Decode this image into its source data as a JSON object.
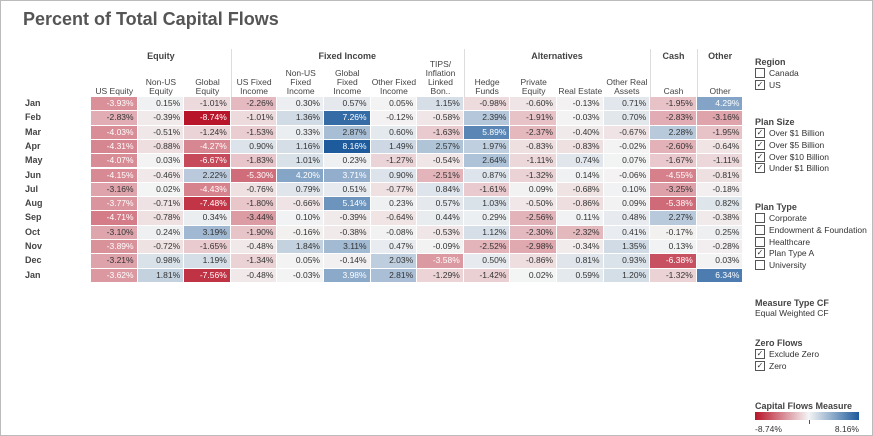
{
  "chart_data": {
    "type": "heatmap",
    "title": "Percent of Total Capital Flows",
    "groups": [
      {
        "name": "Equity",
        "span": 3
      },
      {
        "name": "Fixed Income",
        "span": 5
      },
      {
        "name": "Alternatives",
        "span": 4
      },
      {
        "name": "Cash",
        "span": 1
      },
      {
        "name": "Other",
        "span": 1
      }
    ],
    "columns": [
      "US Equity",
      "Non-US Equity",
      "Global Equity",
      "US Fixed Income",
      "Non-US Fixed Income",
      "Global Fixed Income",
      "Other Fixed Income",
      "TIPS/ Inflation Linked Bon..",
      "Hedge Funds",
      "Private Equity",
      "Real Estate",
      "Other Real Assets",
      "Cash",
      "Other"
    ],
    "categories": [
      "Jan",
      "Feb",
      "Mar",
      "Apr",
      "May",
      "Jun",
      "Jul",
      "Aug",
      "Sep",
      "Oct",
      "Nov",
      "Dec",
      "Jan"
    ],
    "values": [
      [
        -3.93,
        0.15,
        -1.01,
        -2.26,
        0.3,
        0.57,
        0.05,
        1.15,
        -0.98,
        -0.6,
        -0.13,
        0.71,
        -1.95,
        4.29
      ],
      [
        -2.83,
        -0.39,
        -8.74,
        -1.01,
        1.36,
        7.26,
        -0.12,
        -0.58,
        2.39,
        -1.91,
        -0.03,
        0.7,
        -2.83,
        -3.16
      ],
      [
        -4.03,
        -0.51,
        -1.24,
        -1.53,
        0.33,
        2.87,
        0.6,
        -1.63,
        5.89,
        -2.37,
        -0.4,
        -0.67,
        2.28,
        -1.95
      ],
      [
        -4.31,
        -0.88,
        -4.27,
        0.9,
        1.16,
        8.16,
        1.49,
        2.57,
        1.97,
        -0.83,
        -0.83,
        -0.02,
        -2.6,
        -0.64
      ],
      [
        -4.07,
        0.03,
        -6.67,
        -1.83,
        1.01,
        0.23,
        -1.27,
        -0.54,
        2.64,
        -1.11,
        0.74,
        0.07,
        -1.67,
        -1.11
      ],
      [
        -4.15,
        -0.46,
        2.22,
        -5.3,
        4.2,
        3.71,
        0.9,
        -2.51,
        0.87,
        -1.32,
        0.14,
        -0.06,
        -4.55,
        -0.81
      ],
      [
        -3.16,
        0.02,
        -4.43,
        -0.76,
        0.79,
        0.51,
        -0.77,
        0.84,
        -1.61,
        0.09,
        -0.68,
        0.1,
        -3.25,
        -0.18
      ],
      [
        -3.77,
        -0.71,
        -7.48,
        -1.8,
        -0.66,
        5.14,
        0.23,
        0.57,
        1.03,
        -0.5,
        -0.86,
        0.09,
        -5.38,
        0.82
      ],
      [
        -4.71,
        -0.78,
        0.34,
        -3.44,
        0.1,
        -0.39,
        -0.64,
        0.44,
        0.29,
        -2.56,
        0.11,
        0.48,
        2.27,
        -0.38
      ],
      [
        -3.1,
        0.24,
        3.19,
        -1.9,
        -0.16,
        -0.38,
        -0.08,
        -0.53,
        1.12,
        -2.3,
        -2.32,
        0.41,
        -0.17,
        0.25
      ],
      [
        -3.89,
        -0.72,
        -1.65,
        -0.48,
        1.84,
        3.11,
        0.47,
        -0.09,
        -2.52,
        -2.98,
        -0.34,
        1.35,
        0.13,
        -0.28
      ],
      [
        -3.21,
        0.98,
        1.19,
        -1.34,
        0.05,
        -0.14,
        2.03,
        -3.58,
        0.5,
        -0.86,
        0.81,
        0.93,
        -6.38,
        0.03
      ],
      [
        -3.62,
        1.81,
        -7.56,
        -0.48,
        -0.03,
        3.98,
        2.81,
        -1.29,
        -1.42,
        0.02,
        0.59,
        1.2,
        -1.32,
        6.34
      ]
    ],
    "value_labels": [
      [
        "-3.93%",
        "0.15%",
        "-1.01%",
        "-2.26%",
        "0.30%",
        "0.57%",
        "0.05%",
        "1.15%",
        "-0.98%",
        "-0.60%",
        "-0.13%",
        "0.71%",
        "-1.95%",
        "4.29%"
      ],
      [
        "-2.83%",
        "-0.39%",
        "-8.74%",
        "-1.01%",
        "1.36%",
        "7.26%",
        "-0.12%",
        "-0.58%",
        "2.39%",
        "-1.91%",
        "-0.03%",
        "0.70%",
        "-2.83%",
        "-3.16%"
      ],
      [
        "-4.03%",
        "-0.51%",
        "-1.24%",
        "-1.53%",
        "0.33%",
        "2.87%",
        "0.60%",
        "-1.63%",
        "5.89%",
        "-2.37%",
        "-0.40%",
        "-0.67%",
        "2.28%",
        "-1.95%"
      ],
      [
        "-4.31%",
        "-0.88%",
        "-4.27%",
        "0.90%",
        "1.16%",
        "8.16%",
        "1.49%",
        "2.57%",
        "1.97%",
        "-0.83%",
        "-0.83%",
        "-0.02%",
        "-2.60%",
        "-0.64%"
      ],
      [
        "-4.07%",
        "0.03%",
        "-6.67%",
        "-1.83%",
        "1.01%",
        "0.23%",
        "-1.27%",
        "-0.54%",
        "2.64%",
        "-1.11%",
        "0.74%",
        "0.07%",
        "-1.67%",
        "-1.11%"
      ],
      [
        "-4.15%",
        "-0.46%",
        "2.22%",
        "-5.30%",
        "4.20%",
        "3.71%",
        "0.90%",
        "-2.51%",
        "0.87%",
        "-1.32%",
        "0.14%",
        "-0.06%",
        "-4.55%",
        "-0.81%"
      ],
      [
        "-3.16%",
        "0.02%",
        "-4.43%",
        "-0.76%",
        "0.79%",
        "0.51%",
        "-0.77%",
        "0.84%",
        "-1.61%",
        "0.09%",
        "-0.68%",
        "0.10%",
        "-3.25%",
        "-0.18%"
      ],
      [
        "-3.77%",
        "-0.71%",
        "-7.48%",
        "-1.80%",
        "-0.66%",
        "5.14%",
        "0.23%",
        "0.57%",
        "1.03%",
        "-0.50%",
        "-0.86%",
        "0.09%",
        "-5.38%",
        "0.82%"
      ],
      [
        "-4.71%",
        "-0.78%",
        "0.34%",
        "-3.44%",
        "0.10%",
        "-0.39%",
        "-0.64%",
        "0.44%",
        "0.29%",
        "-2.56%",
        "0.11%",
        "0.48%",
        "2.27%",
        "-0.38%"
      ],
      [
        "-3.10%",
        "0.24%",
        "3.19%",
        "-1.90%",
        "-0.16%",
        "-0.38%",
        "-0.08%",
        "-0.53%",
        "1.12%",
        "-2.30%",
        "-2.32%",
        "0.41%",
        "-0.17%",
        "0.25%"
      ],
      [
        "-3.89%",
        "-0.72%",
        "-1.65%",
        "-0.48%",
        "1.84%",
        "3.11%",
        "0.47%",
        "-0.09%",
        "-2.52%",
        "-2.98%",
        "-0.34%",
        "1.35%",
        "0.13%",
        "-0.28%"
      ],
      [
        "-3.21%",
        "0.98%",
        "1.19%",
        "-1.34%",
        "0.05%",
        "-0.14%",
        "2.03%",
        "-3.58%",
        "0.50%",
        "-0.86%",
        "0.81%",
        "0.93%",
        "-6.38%",
        "0.03%"
      ],
      [
        "-3.62%",
        "1.81%",
        "-7.56%",
        "-0.48%",
        "-0.03%",
        "3.98%",
        "2.81%",
        "-1.29%",
        "-1.42%",
        "0.02%",
        "0.59%",
        "1.20%",
        "-1.32%",
        "6.34%"
      ]
    ],
    "color_scale": {
      "title": "Capital Flows Measure",
      "min": -8.74,
      "max": 8.16,
      "min_label": "-8.74%",
      "max_label": "8.16%",
      "negative_color": "#b8152a",
      "neutral_color": "#f4f4f4",
      "positive_color": "#1d5b9c"
    }
  },
  "filters": [
    {
      "title": "Region",
      "options": [
        {
          "label": "Canada",
          "checked": false
        },
        {
          "label": "US",
          "checked": true
        }
      ]
    },
    {
      "title": "Plan Size",
      "options": [
        {
          "label": "Over $1 Billion",
          "checked": true
        },
        {
          "label": "Over $5 Billion",
          "checked": true
        },
        {
          "label": "Over $10 Billion",
          "checked": true
        },
        {
          "label": "Under $1 Billion",
          "checked": true
        }
      ]
    },
    {
      "title": "Plan Type",
      "options": [
        {
          "label": "Corporate",
          "checked": false
        },
        {
          "label": "Endowment & Foundation",
          "checked": false
        },
        {
          "label": "Healthcare",
          "checked": false
        },
        {
          "label": "Plan Type A",
          "checked": true
        },
        {
          "label": "University",
          "checked": false
        }
      ]
    }
  ],
  "measure_type": {
    "title": "Measure Type CF",
    "value": "Equal Weighted CF"
  },
  "zero_flows": {
    "title": "Zero Flows",
    "options": [
      {
        "label": "Exclude Zero",
        "checked": true
      },
      {
        "label": "Zero",
        "checked": true
      }
    ]
  }
}
